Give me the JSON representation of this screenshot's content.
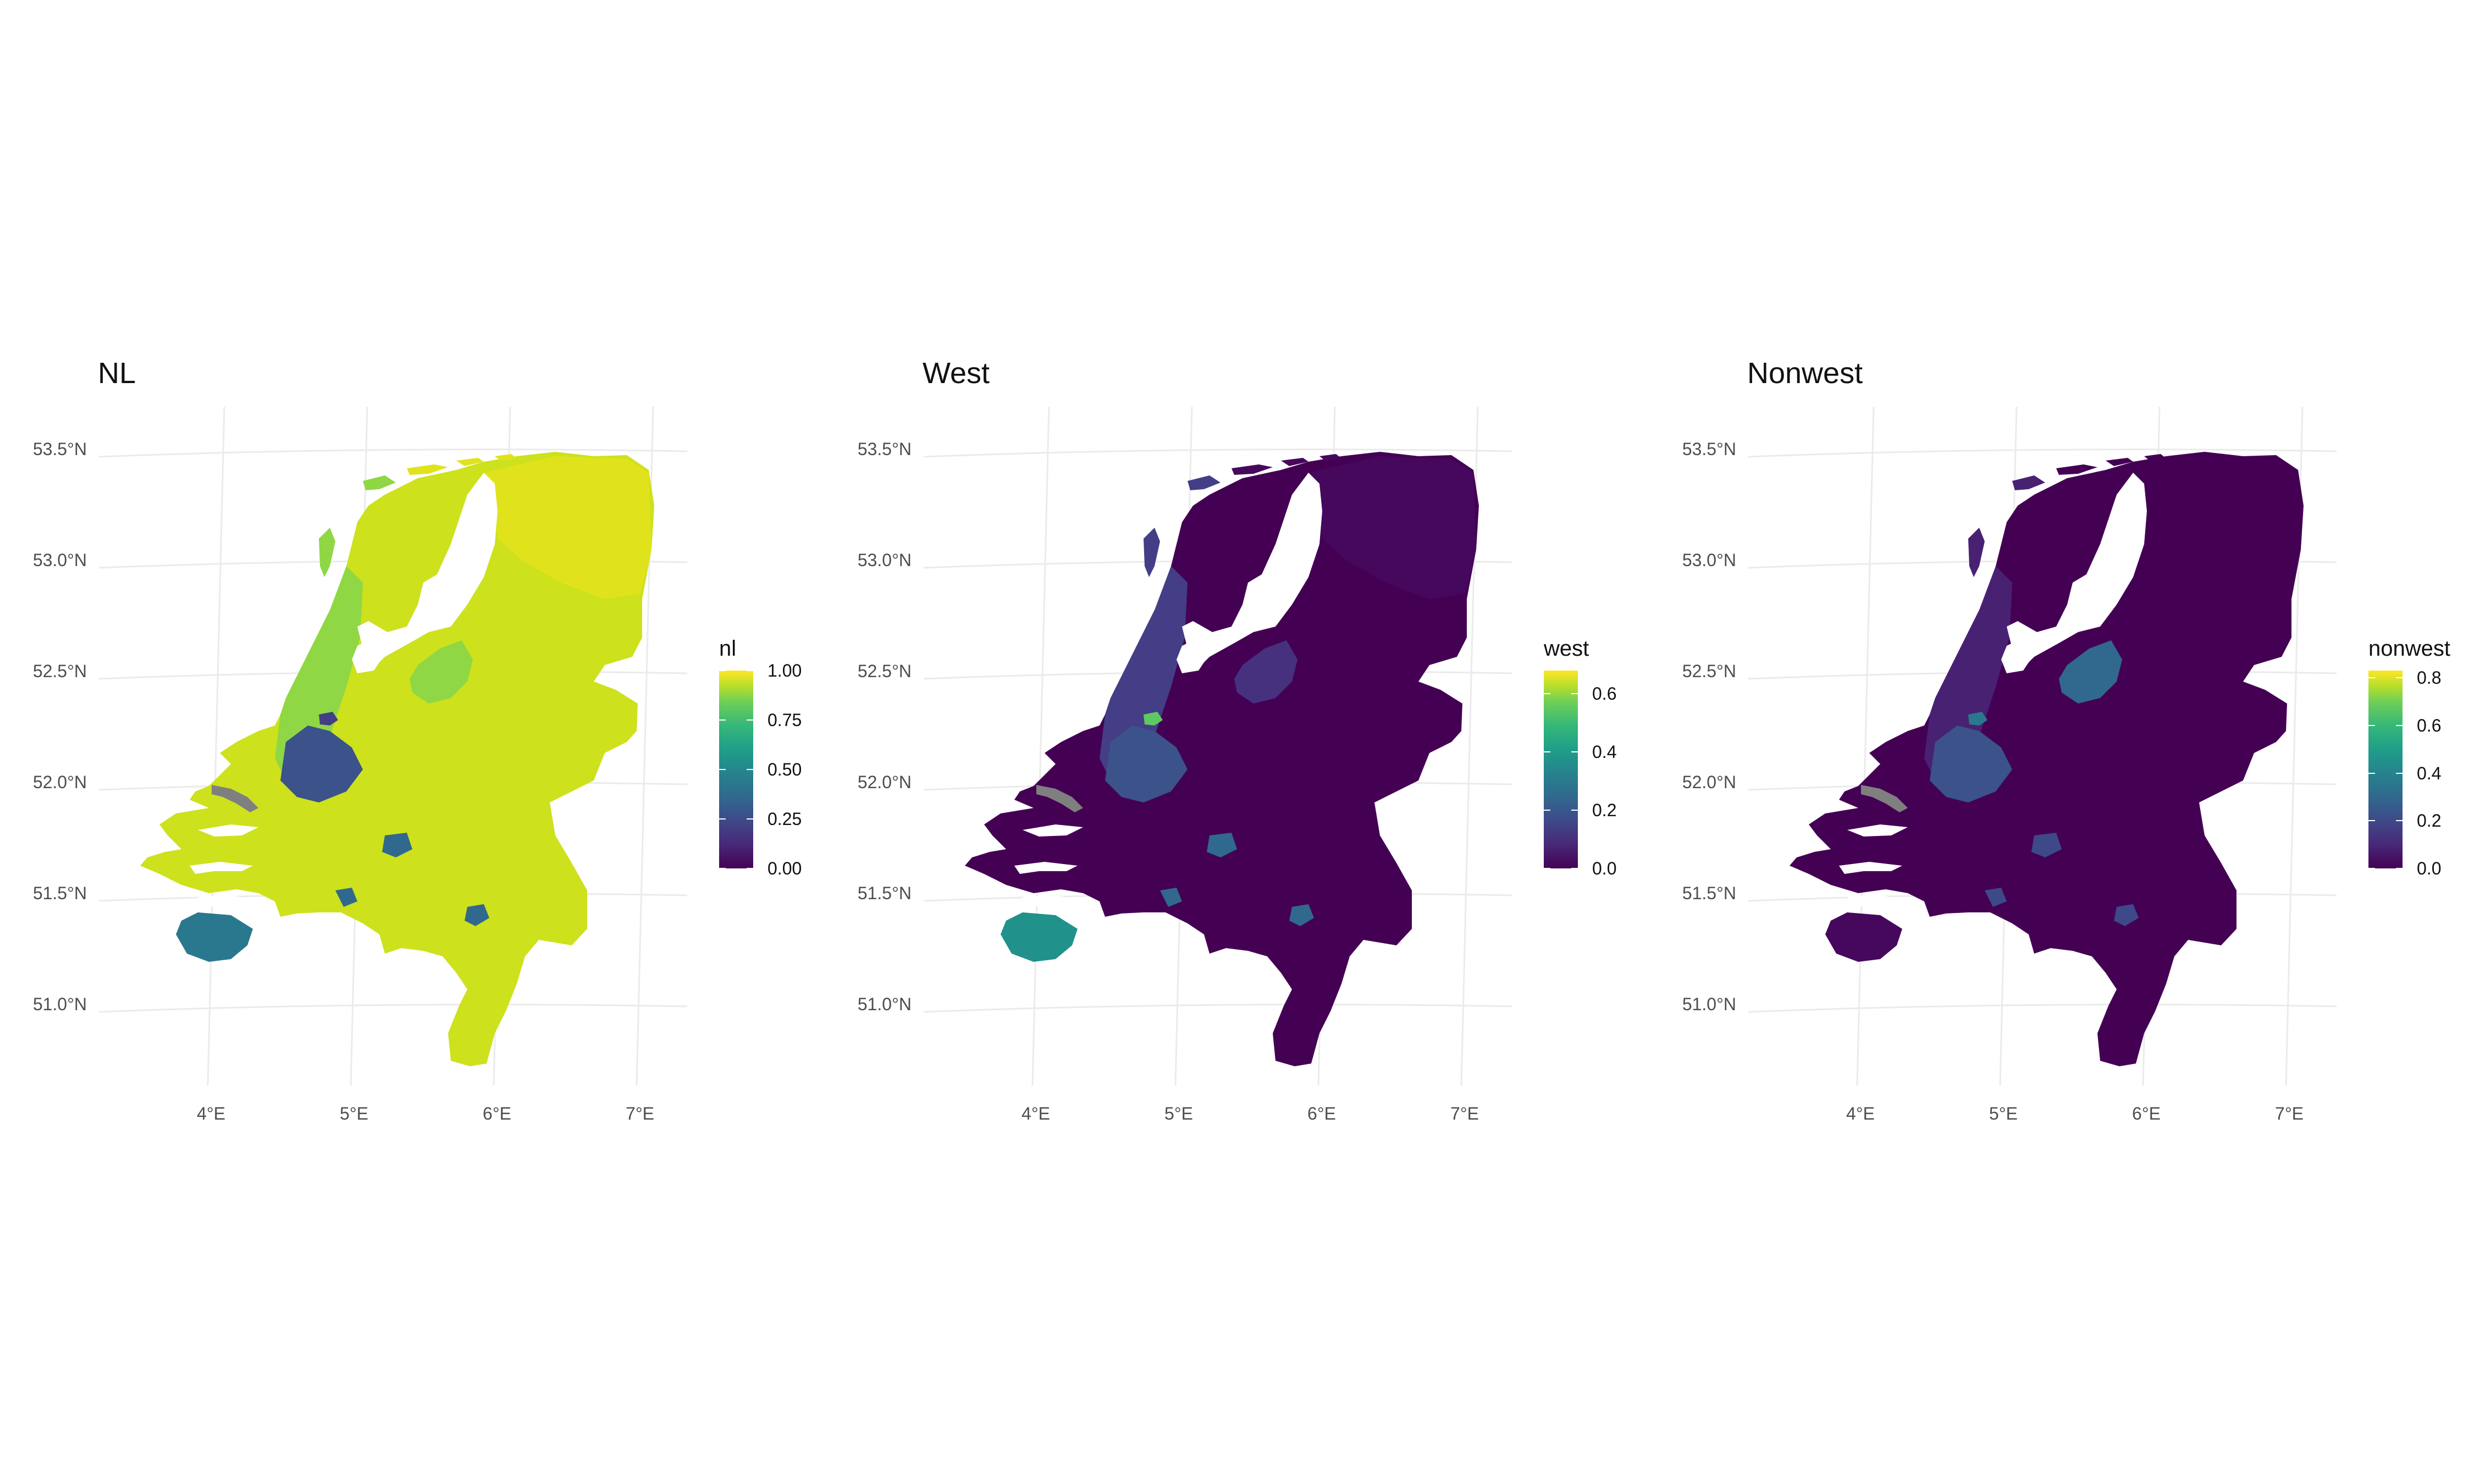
{
  "chart_data": [
    {
      "type": "choropleth",
      "title": "NL",
      "legend": {
        "title": "nl",
        "min": 0,
        "max": 1,
        "ticks": [
          {
            "value": 0.0,
            "label": "0.00"
          },
          {
            "value": 0.25,
            "label": "0.25"
          },
          {
            "value": 0.5,
            "label": "0.50"
          },
          {
            "value": 0.75,
            "label": "0.75"
          },
          {
            "value": 1.0,
            "label": "1.00"
          }
        ]
      },
      "fill": {
        "main": "#cde11d",
        "northeast": "#e0e31b",
        "west": "#8fd744",
        "randstad": "#3b528b",
        "amsterdam": "#433e85",
        "zeeland": "#2a788e",
        "flevoland": "#8fd744",
        "south_spots": "#31688e"
      },
      "lat_ticks": [
        "53.5°N",
        "53.0°N",
        "52.5°N",
        "52.0°N",
        "51.5°N",
        "51.0°N"
      ],
      "lon_ticks": [
        "4°E",
        "5°E",
        "6°E",
        "7°E"
      ],
      "colormap": "viridis"
    },
    {
      "type": "choropleth",
      "title": "West",
      "legend": {
        "title": "west",
        "min": 0,
        "max": 0.68,
        "ticks": [
          {
            "value": 0.0,
            "label": "0.0"
          },
          {
            "value": 0.2,
            "label": "0.2"
          },
          {
            "value": 0.4,
            "label": "0.4"
          },
          {
            "value": 0.6,
            "label": "0.6"
          }
        ]
      },
      "fill": {
        "main": "#440154",
        "northeast": "#46085c",
        "west": "#433e85",
        "randstad": "#3b528b",
        "amsterdam": "#5ec962",
        "zeeland": "#21918c",
        "flevoland": "#46317e",
        "south_spots": "#31688e"
      },
      "lat_ticks": [
        "53.5°N",
        "53.0°N",
        "52.5°N",
        "52.0°N",
        "51.5°N",
        "51.0°N"
      ],
      "lon_ticks": [
        "4°E",
        "5°E",
        "6°E",
        "7°E"
      ],
      "colormap": "viridis"
    },
    {
      "type": "choropleth",
      "title": "Nonwest",
      "legend": {
        "title": "nonwest",
        "min": 0,
        "max": 0.83,
        "ticks": [
          {
            "value": 0.0,
            "label": "0.0"
          },
          {
            "value": 0.2,
            "label": "0.2"
          },
          {
            "value": 0.4,
            "label": "0.4"
          },
          {
            "value": 0.6,
            "label": "0.6"
          },
          {
            "value": 0.8,
            "label": "0.8"
          }
        ]
      },
      "fill": {
        "main": "#440154",
        "northeast": "#440154",
        "west": "#482173",
        "randstad": "#3b528b",
        "amsterdam": "#2a788e",
        "zeeland": "#46085c",
        "flevoland": "#31688e",
        "south_spots": "#3e4989"
      },
      "lat_ticks": [
        "53.5°N",
        "53.0°N",
        "52.5°N",
        "52.0°N",
        "51.5°N",
        "51.0°N"
      ],
      "lon_ticks": [
        "4°E",
        "5°E",
        "6°E",
        "7°E"
      ],
      "colormap": "viridis"
    }
  ]
}
